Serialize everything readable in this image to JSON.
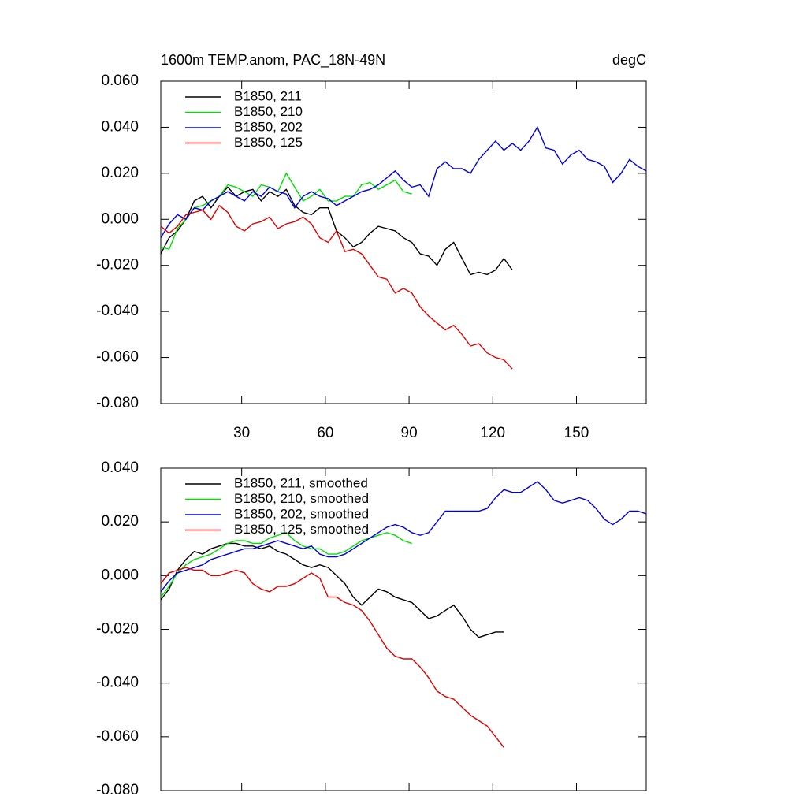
{
  "chart_data": [
    {
      "type": "line",
      "title": "1600m TEMP.anom, PAC_18N-49N",
      "units": "degC",
      "x": [
        1,
        4,
        7,
        10,
        13,
        16,
        19,
        22,
        25,
        28,
        31,
        34,
        37,
        40,
        43,
        46,
        49,
        52,
        55,
        58,
        61,
        64,
        67,
        70,
        73,
        76,
        79,
        82,
        85,
        88,
        91,
        94,
        97,
        100,
        103,
        106,
        109,
        112,
        115,
        118,
        121,
        124,
        127,
        130,
        133,
        136,
        139,
        142,
        145,
        148,
        151,
        154,
        157,
        160,
        163,
        166,
        169,
        172,
        175
      ],
      "xlim": [
        1,
        175
      ],
      "xticks": [
        30,
        60,
        90,
        120,
        150
      ],
      "xtick_labels": true,
      "ylim": [
        -0.08,
        0.06
      ],
      "yticks": [
        {
          "value": -0.08,
          "label": "-0.080"
        },
        {
          "value": -0.06,
          "label": "-0.060"
        },
        {
          "value": -0.04,
          "label": "-0.040"
        },
        {
          "value": -0.02,
          "label": "-0.020"
        },
        {
          "value": 0,
          "label": "0.000"
        },
        {
          "value": 0.02,
          "label": "0.020"
        },
        {
          "value": 0.04,
          "label": "0.040"
        },
        {
          "value": 0.06,
          "label": "0.060"
        }
      ],
      "legend": "upper left",
      "series": [
        {
          "name": "B1850, 211",
          "color": "#000000",
          "values": [
            -0.015,
            -0.008,
            -0.005,
            0.0,
            0.008,
            0.01,
            0.005,
            0.01,
            0.014,
            0.01,
            0.012,
            0.013,
            0.008,
            0.012,
            0.01,
            0.013,
            0.006,
            0.003,
            0.002,
            0.005,
            0.005,
            -0.005,
            -0.008,
            -0.012,
            -0.01,
            -0.006,
            -0.003,
            -0.004,
            -0.005,
            -0.008,
            -0.01,
            -0.015,
            -0.016,
            -0.02,
            -0.013,
            -0.01,
            -0.017,
            -0.024,
            -0.023,
            -0.024,
            -0.022,
            -0.017,
            -0.022,
            null,
            null,
            null,
            null,
            null,
            null,
            null,
            null,
            null,
            null,
            null,
            null,
            null,
            null,
            null,
            null
          ]
        },
        {
          "name": "B1850, 210",
          "color": "#00e000",
          "values": [
            -0.012,
            -0.013,
            -0.004,
            0.0,
            0.005,
            0.006,
            0.008,
            0.01,
            0.015,
            0.014,
            0.012,
            0.01,
            0.015,
            0.014,
            0.012,
            0.02,
            0.014,
            0.008,
            0.01,
            0.013,
            0.008,
            0.008,
            0.01,
            0.01,
            0.015,
            0.016,
            0.013,
            0.015,
            0.017,
            0.012,
            0.011,
            null,
            null,
            null,
            null,
            null,
            null,
            null,
            null,
            null,
            null,
            null,
            null,
            null,
            null,
            null,
            null,
            null,
            null,
            null,
            null,
            null,
            null,
            null,
            null,
            null,
            null,
            null,
            null
          ]
        },
        {
          "name": "B1850, 202",
          "color": "#0000e0",
          "values": [
            -0.008,
            -0.002,
            0.002,
            0.0,
            0.005,
            0.004,
            0.008,
            0.01,
            0.012,
            0.01,
            0.008,
            0.012,
            0.01,
            0.014,
            0.012,
            0.011,
            0.005,
            0.01,
            0.012,
            0.01,
            0.009,
            0.006,
            0.008,
            0.01,
            0.012,
            0.013,
            0.015,
            0.018,
            0.021,
            0.017,
            0.014,
            0.015,
            0.01,
            0.022,
            0.025,
            0.022,
            0.022,
            0.02,
            0.026,
            0.03,
            0.034,
            0.03,
            0.033,
            0.03,
            0.034,
            0.04,
            0.031,
            0.03,
            0.024,
            0.028,
            0.03,
            0.026,
            0.025,
            0.023,
            0.016,
            0.02,
            0.026,
            0.023,
            0.021
          ]
        },
        {
          "name": "B1850, 125",
          "color": "#e00000",
          "values": [
            -0.003,
            -0.006,
            -0.003,
            0.002,
            0.003,
            0.004,
            0.0,
            0.006,
            0.003,
            -0.003,
            -0.005,
            -0.002,
            -0.001,
            0.001,
            -0.004,
            -0.002,
            -0.001,
            0.001,
            -0.002,
            -0.008,
            -0.01,
            -0.005,
            -0.014,
            -0.013,
            -0.015,
            -0.02,
            -0.025,
            -0.026,
            -0.032,
            -0.03,
            -0.032,
            -0.038,
            -0.042,
            -0.045,
            -0.048,
            -0.046,
            -0.05,
            -0.055,
            -0.054,
            -0.058,
            -0.06,
            -0.061,
            -0.065,
            null,
            null,
            null,
            null,
            null,
            null,
            null,
            null,
            null,
            null,
            null,
            null,
            null,
            null,
            null,
            null
          ]
        }
      ]
    },
    {
      "type": "line",
      "x": [
        1,
        4,
        7,
        10,
        13,
        16,
        19,
        22,
        25,
        28,
        31,
        34,
        37,
        40,
        43,
        46,
        49,
        52,
        55,
        58,
        61,
        64,
        67,
        70,
        73,
        76,
        79,
        82,
        85,
        88,
        91,
        94,
        97,
        100,
        103,
        106,
        109,
        112,
        115,
        118,
        121,
        124,
        127,
        130,
        133,
        136,
        139,
        142,
        145,
        148,
        151,
        154,
        157,
        160,
        163,
        166,
        169,
        172,
        175
      ],
      "xlim": [
        1,
        175
      ],
      "xticks": [
        30,
        60,
        90,
        120,
        150
      ],
      "xtick_labels": false,
      "ylim": [
        -0.08,
        0.04
      ],
      "yticks": [
        {
          "value": -0.08,
          "label": "-0.080"
        },
        {
          "value": -0.06,
          "label": "-0.060"
        },
        {
          "value": -0.04,
          "label": "-0.040"
        },
        {
          "value": -0.02,
          "label": "-0.020"
        },
        {
          "value": 0,
          "label": "0.000"
        },
        {
          "value": 0.02,
          "label": "0.020"
        },
        {
          "value": 0.04,
          "label": "0.040"
        }
      ],
      "legend": "upper left",
      "series": [
        {
          "name": "B1850, 211, smoothed",
          "color": "#000000",
          "values": [
            -0.009,
            -0.005,
            0.002,
            0.006,
            0.009,
            0.008,
            0.01,
            0.011,
            0.012,
            0.012,
            0.011,
            0.011,
            0.01,
            0.011,
            0.009,
            0.008,
            0.006,
            0.004,
            0.003,
            0.004,
            0.003,
            0.0,
            -0.003,
            -0.008,
            -0.011,
            -0.008,
            -0.005,
            -0.006,
            -0.008,
            -0.009,
            -0.01,
            -0.013,
            -0.016,
            -0.015,
            -0.013,
            -0.011,
            -0.015,
            -0.02,
            -0.023,
            -0.022,
            -0.021,
            -0.021,
            null,
            null,
            null,
            null,
            null,
            null,
            null,
            null,
            null,
            null,
            null,
            null,
            null,
            null,
            null,
            null,
            null
          ]
        },
        {
          "name": "B1850, 210, smoothed",
          "color": "#00e000",
          "values": [
            -0.008,
            -0.004,
            0.001,
            0.004,
            0.006,
            0.007,
            0.008,
            0.01,
            0.012,
            0.013,
            0.013,
            0.012,
            0.012,
            0.014,
            0.015,
            0.016,
            0.013,
            0.011,
            0.01,
            0.01,
            0.008,
            0.008,
            0.009,
            0.011,
            0.013,
            0.014,
            0.015,
            0.016,
            0.015,
            0.013,
            0.012,
            null,
            null,
            null,
            null,
            null,
            null,
            null,
            null,
            null,
            null,
            null,
            null,
            null,
            null,
            null,
            null,
            null,
            null,
            null,
            null,
            null,
            null,
            null,
            null,
            null,
            null,
            null,
            null
          ]
        },
        {
          "name": "B1850, 202, smoothed",
          "color": "#0000e0",
          "values": [
            -0.006,
            -0.002,
            0.001,
            0.002,
            0.003,
            0.004,
            0.006,
            0.007,
            0.008,
            0.009,
            0.01,
            0.01,
            0.011,
            0.012,
            0.013,
            0.012,
            0.011,
            0.01,
            0.011,
            0.008,
            0.007,
            0.007,
            0.008,
            0.01,
            0.012,
            0.014,
            0.016,
            0.018,
            0.019,
            0.018,
            0.016,
            0.015,
            0.016,
            0.02,
            0.024,
            0.024,
            0.024,
            0.024,
            0.024,
            0.025,
            0.029,
            0.032,
            0.031,
            0.031,
            0.033,
            0.035,
            0.032,
            0.028,
            0.027,
            0.028,
            0.029,
            0.028,
            0.025,
            0.021,
            0.019,
            0.021,
            0.024,
            0.024,
            0.023
          ]
        },
        {
          "name": "B1850, 125, smoothed",
          "color": "#e00000",
          "values": [
            -0.003,
            0.001,
            0.002,
            0.003,
            0.002,
            0.002,
            0.0,
            0.0,
            0.001,
            0.002,
            0.001,
            -0.003,
            -0.005,
            -0.006,
            -0.004,
            -0.004,
            -0.003,
            -0.001,
            0.001,
            -0.001,
            -0.008,
            -0.008,
            -0.01,
            -0.011,
            -0.013,
            -0.017,
            -0.022,
            -0.027,
            -0.03,
            -0.031,
            -0.031,
            -0.034,
            -0.038,
            -0.043,
            -0.045,
            -0.046,
            -0.049,
            -0.052,
            -0.054,
            -0.056,
            -0.06,
            -0.064,
            null,
            null,
            null,
            null,
            null,
            null,
            null,
            null,
            null,
            null,
            null,
            null,
            null,
            null,
            null,
            null,
            null
          ]
        }
      ]
    }
  ]
}
